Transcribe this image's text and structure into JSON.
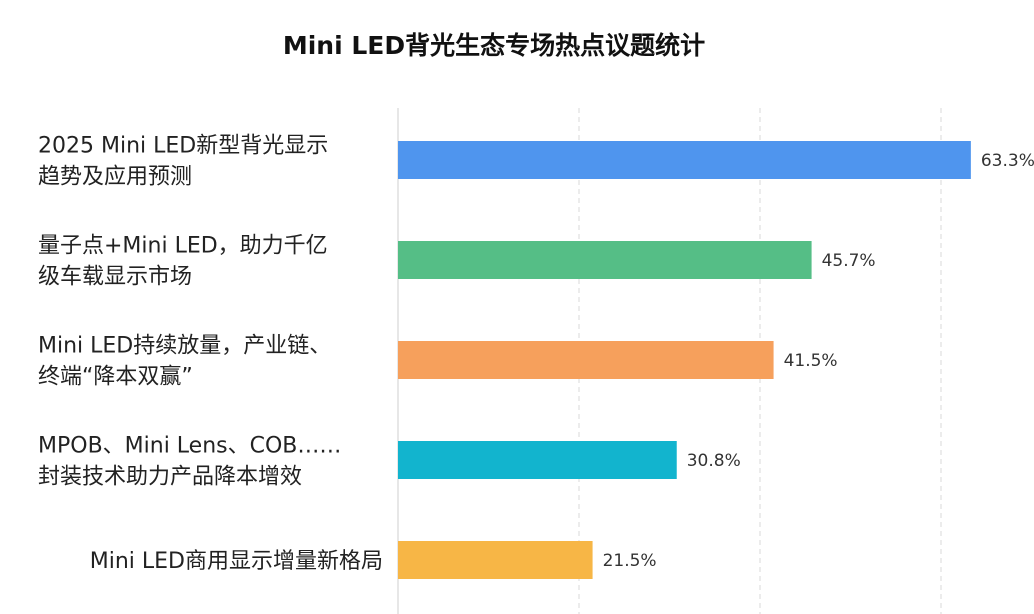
{
  "chart_data": {
    "type": "bar",
    "orientation": "horizontal",
    "title": "Mini LED背光生态专场热点议题统计",
    "categories": [
      [
        "2025 Mini LED新型背光显示",
        "趋势及应用预测"
      ],
      [
        "量子点+Mini LED，助力千亿",
        "级车载显示市场"
      ],
      [
        "Mini LED持续放量，产业链、",
        "终端“降本双赢”"
      ],
      [
        "MPOB、Mini Lens、COB……",
        "封装技术助力产品降本增效"
      ],
      [
        "Mini LED商用显示增量新格局"
      ]
    ],
    "values": [
      63.3,
      45.7,
      41.5,
      30.8,
      21.5
    ],
    "value_labels": [
      "63.3%",
      "45.7%",
      "41.5%",
      "30.8%",
      "21.5%"
    ],
    "colors": [
      "#4F95EE",
      "#55BE86",
      "#F6A05C",
      "#12B4CE",
      "#F7B646"
    ],
    "xlim": [
      0,
      70
    ],
    "grid_values": [
      0,
      20,
      40,
      60
    ],
    "grid": true,
    "xlabel": "",
    "ylabel": ""
  }
}
